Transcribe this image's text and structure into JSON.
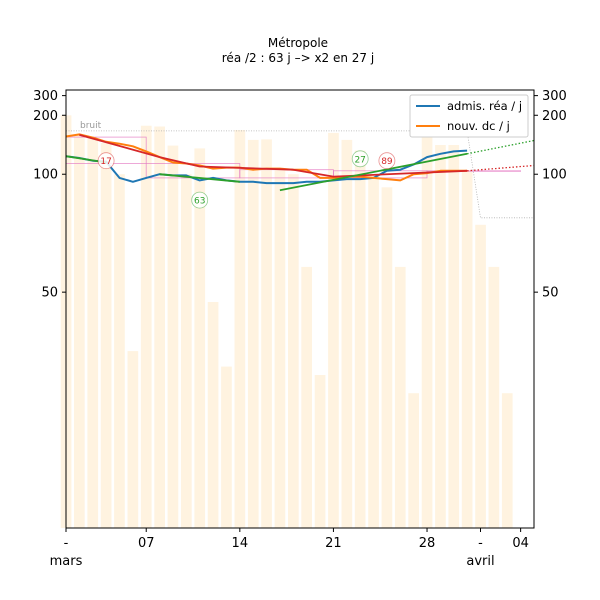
{
  "chart_data": {
    "type": "line",
    "title": "Métropole",
    "subtitle": "réa /2 : 63 j –> x2 en 27 j",
    "x_start": "2020-03-01",
    "x_ticks": [
      {
        "date": "2020-03-01",
        "label": "-"
      },
      {
        "date": "2020-03-07",
        "label": "07"
      },
      {
        "date": "2020-03-14",
        "label": "14"
      },
      {
        "date": "2020-03-21",
        "label": "21"
      },
      {
        "date": "2020-03-28",
        "label": "28"
      },
      {
        "date": "2020-04-01",
        "label": "-"
      },
      {
        "date": "2020-04-04",
        "label": "04"
      }
    ],
    "x_month_labels": [
      {
        "date": "2020-03-01",
        "label": "mars"
      },
      {
        "date": "2020-04-01",
        "label": "avril"
      }
    ],
    "xlim": [
      "2020-03-01",
      "2020-04-05"
    ],
    "y_scale": "reciprocal",
    "ylim": [
      25,
      350
    ],
    "y_ticks": [
      50,
      100,
      200,
      300
    ],
    "legend": {
      "placement": "top-right"
    },
    "legend_entries": [
      {
        "label": "admis. réa / j",
        "color": "#1f77b4"
      },
      {
        "label": "nouv. dc / j",
        "color": "#ff7f0e"
      }
    ],
    "series": [
      {
        "name": "admis. réa / j",
        "color": "#1f77b4",
        "points": [
          [
            "2020-03-01",
            118
          ],
          [
            "2020-03-02",
            116
          ],
          [
            "2020-03-03",
            113
          ],
          [
            "2020-03-04",
            112
          ],
          [
            "2020-03-05",
            97
          ],
          [
            "2020-03-06",
            94
          ],
          [
            "2020-03-07",
            97
          ],
          [
            "2020-03-08",
            100
          ],
          [
            "2020-03-09",
            99
          ],
          [
            "2020-03-10",
            99
          ],
          [
            "2020-03-11",
            95
          ],
          [
            "2020-03-12",
            97
          ],
          [
            "2020-03-13",
            95
          ],
          [
            "2020-03-14",
            94
          ],
          [
            "2020-03-15",
            94
          ],
          [
            "2020-03-16",
            93
          ],
          [
            "2020-03-17",
            93
          ],
          [
            "2020-03-18",
            93
          ],
          [
            "2020-03-19",
            94
          ],
          [
            "2020-03-20",
            94
          ],
          [
            "2020-03-21",
            95
          ],
          [
            "2020-03-22",
            96
          ],
          [
            "2020-03-23",
            96
          ],
          [
            "2020-03-24",
            97
          ],
          [
            "2020-03-25",
            103
          ],
          [
            "2020-03-26",
            104
          ],
          [
            "2020-03-27",
            109
          ],
          [
            "2020-03-28",
            117
          ],
          [
            "2020-03-29",
            121
          ],
          [
            "2020-03-30",
            124
          ],
          [
            "2020-03-31",
            125
          ]
        ]
      },
      {
        "name": "nouv. dc / j",
        "color": "#ff7f0e",
        "points": [
          [
            "2020-03-01",
            147
          ],
          [
            "2020-03-02",
            151
          ],
          [
            "2020-03-03",
            145
          ],
          [
            "2020-03-04",
            138
          ],
          [
            "2020-03-05",
            135
          ],
          [
            "2020-03-06",
            131
          ],
          [
            "2020-03-07",
            124
          ],
          [
            "2020-03-08",
            117
          ],
          [
            "2020-03-09",
            111
          ],
          [
            "2020-03-10",
            110
          ],
          [
            "2020-03-11",
            108
          ],
          [
            "2020-03-12",
            105
          ],
          [
            "2020-03-13",
            106
          ],
          [
            "2020-03-14",
            106
          ],
          [
            "2020-03-15",
            104
          ],
          [
            "2020-03-16",
            105
          ],
          [
            "2020-03-17",
            105
          ],
          [
            "2020-03-18",
            104
          ],
          [
            "2020-03-19",
            104
          ],
          [
            "2020-03-20",
            97
          ],
          [
            "2020-03-21",
            97
          ],
          [
            "2020-03-22",
            98
          ],
          [
            "2020-03-23",
            98
          ],
          [
            "2020-03-24",
            97
          ],
          [
            "2020-03-25",
            96
          ],
          [
            "2020-03-26",
            95
          ],
          [
            "2020-03-27",
            100
          ],
          [
            "2020-03-28",
            101
          ],
          [
            "2020-03-29",
            103
          ],
          [
            "2020-03-30",
            103
          ],
          [
            "2020-03-31",
            103
          ]
        ]
      }
    ],
    "trend_lines": [
      {
        "color": "#d62728",
        "points": [
          [
            "2020-03-02",
            150
          ],
          [
            "2020-03-08",
            117
          ],
          [
            "2020-03-11",
            107
          ],
          [
            "2020-03-18",
            104
          ],
          [
            "2020-03-21",
            98
          ],
          [
            "2020-03-31",
            103
          ]
        ]
      },
      {
        "color": "#2ca02c",
        "points": [
          [
            "2020-03-01",
            118
          ],
          [
            "2020-03-04",
            111
          ]
        ]
      },
      {
        "color": "#2ca02c",
        "points": [
          [
            "2020-03-08",
            100
          ],
          [
            "2020-03-14",
            94
          ]
        ]
      },
      {
        "color": "#2ca02c",
        "points": [
          [
            "2020-03-17",
            88
          ],
          [
            "2020-03-31",
            121
          ]
        ]
      }
    ],
    "projections": [
      {
        "color": "#2ca02c",
        "points": [
          [
            "2020-03-31",
            121
          ],
          [
            "2020-04-05",
            140
          ]
        ]
      },
      {
        "color": "#d62728",
        "points": [
          [
            "2020-03-31",
            103
          ],
          [
            "2020-04-05",
            108
          ]
        ]
      }
    ],
    "noise_label": "bruit",
    "noise_band": {
      "color": "#b0b0b0",
      "points": [
        [
          "2020-03-01",
          158
        ],
        [
          "2020-03-31",
          158
        ],
        [
          "2020-04-01",
          73
        ],
        [
          "2020-04-05",
          73
        ]
      ]
    },
    "boxes": [
      {
        "color": "#e377c2",
        "x0": "2020-03-01",
        "x1": "2020-03-07",
        "y0": 110,
        "y1": 146
      },
      {
        "color": "#e377c2",
        "x0": "2020-03-07",
        "x1": "2020-03-14",
        "y0": 97,
        "y1": 110
      },
      {
        "color": "#e377c2",
        "x0": "2020-03-14",
        "x1": "2020-03-21",
        "y0": 97,
        "y1": 104
      },
      {
        "color": "#e377c2",
        "x0": "2020-03-21",
        "x1": "2020-03-28",
        "y0": 97,
        "y1": 103
      },
      {
        "color": "#e377c2",
        "x0": "2020-03-28",
        "x1": "2020-04-04",
        "y0": 103,
        "y1": 103
      }
    ],
    "background_bars": {
      "color": "#fff3e0",
      "points": [
        [
          "2020-03-01",
          200
        ],
        [
          "2020-03-02",
          150
        ],
        [
          "2020-03-03",
          145
        ],
        [
          "2020-03-04",
          136
        ],
        [
          "2020-03-05",
          100
        ],
        [
          "2020-03-06",
          40
        ],
        [
          "2020-03-07",
          170
        ],
        [
          "2020-03-08",
          168
        ],
        [
          "2020-03-09",
          132
        ],
        [
          "2020-03-10",
          100
        ],
        [
          "2020-03-11",
          128
        ],
        [
          "2020-03-12",
          48
        ],
        [
          "2020-03-13",
          38
        ],
        [
          "2020-03-14",
          160
        ],
        [
          "2020-03-15",
          141
        ],
        [
          "2020-03-16",
          142
        ],
        [
          "2020-03-17",
          105
        ],
        [
          "2020-03-18",
          100
        ],
        [
          "2020-03-19",
          56
        ],
        [
          "2020-03-20",
          37
        ],
        [
          "2020-03-21",
          154
        ],
        [
          "2020-03-22",
          141
        ],
        [
          "2020-03-23",
          125
        ],
        [
          "2020-03-24",
          98
        ],
        [
          "2020-03-25",
          90
        ],
        [
          "2020-03-26",
          56
        ],
        [
          "2020-03-27",
          35
        ],
        [
          "2020-03-28",
          147
        ],
        [
          "2020-03-29",
          133
        ],
        [
          "2020-03-30",
          133
        ],
        [
          "2020-03-31",
          103
        ],
        [
          "2020-04-01",
          70
        ],
        [
          "2020-04-02",
          56
        ],
        [
          "2020-04-03",
          35
        ]
      ]
    },
    "annotations": [
      {
        "text": "17",
        "color": "#d62728",
        "date": "2020-03-04",
        "y": 113
      },
      {
        "text": "63",
        "color": "#2ca02c",
        "date": "2020-03-11",
        "y": 82
      },
      {
        "text": "27",
        "color": "#2ca02c",
        "date": "2020-03-23",
        "y": 115
      },
      {
        "text": "89",
        "color": "#d62728",
        "date": "2020-03-25",
        "y": 113
      }
    ]
  }
}
